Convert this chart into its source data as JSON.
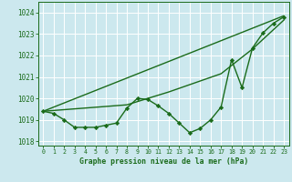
{
  "title": "Graphe pression niveau de la mer (hPa)",
  "bg_color": "#cce8ee",
  "grid_color": "#ffffff",
  "line_color": "#1a6b1a",
  "xlim": [
    -0.5,
    23.5
  ],
  "ylim": [
    1017.8,
    1024.5
  ],
  "yticks": [
    1018,
    1019,
    1020,
    1021,
    1022,
    1023,
    1024
  ],
  "xticks": [
    0,
    1,
    2,
    3,
    4,
    5,
    6,
    7,
    8,
    9,
    10,
    11,
    12,
    13,
    14,
    15,
    16,
    17,
    18,
    19,
    20,
    21,
    22,
    23
  ],
  "series": [
    {
      "x": [
        0,
        1,
        2,
        3,
        4,
        5,
        6,
        7,
        8,
        9,
        10,
        11,
        12,
        13,
        14,
        15,
        16,
        17,
        18,
        19,
        20,
        21,
        22,
        23
      ],
      "y": [
        1019.4,
        1019.3,
        1019.0,
        1018.65,
        1018.65,
        1018.65,
        1018.75,
        1018.85,
        1019.55,
        1020.0,
        1019.95,
        1019.65,
        1019.3,
        1018.85,
        1018.4,
        1018.6,
        1019.0,
        1019.6,
        1021.8,
        1020.5,
        1022.35,
        1023.05,
        1023.5,
        1023.8
      ],
      "marker": "D",
      "markersize": 2.2,
      "linewidth": 1.0
    },
    {
      "x": [
        0,
        23
      ],
      "y": [
        1019.4,
        1023.85
      ],
      "marker": null,
      "markersize": 0,
      "linewidth": 1.0
    },
    {
      "x": [
        0,
        8,
        12,
        17,
        20,
        23
      ],
      "y": [
        1019.4,
        1019.7,
        1020.3,
        1021.15,
        1022.3,
        1023.65
      ],
      "marker": null,
      "markersize": 0,
      "linewidth": 1.0
    }
  ]
}
